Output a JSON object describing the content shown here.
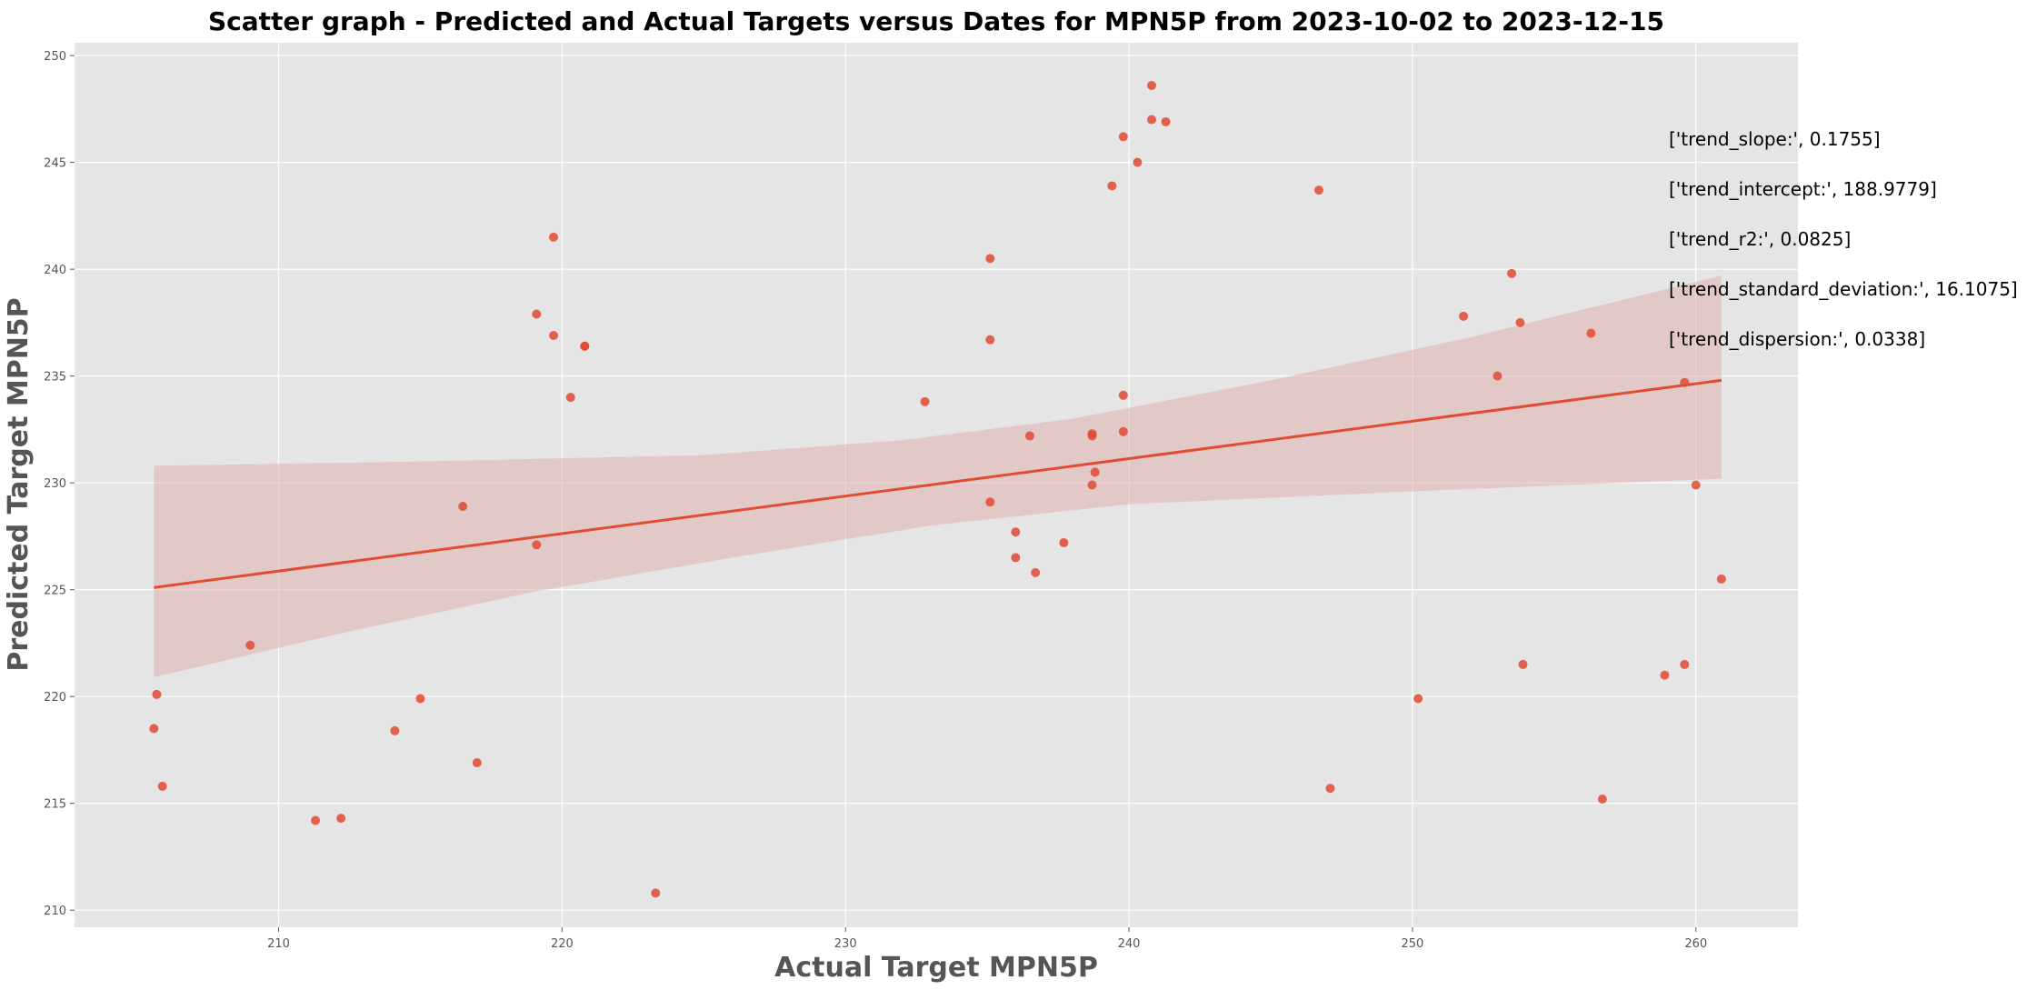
{
  "chart_data": {
    "type": "scatter",
    "title": "Scatter graph - Predicted and Actual Targets versus Dates for MPN5P from 2023-10-02 to 2023-12-15",
    "xlabel": "Actual Target MPN5P",
    "ylabel": "Predicted Target MPN5P",
    "xlim": [
      202.8,
      263.6
    ],
    "ylim": [
      209.2,
      250.6
    ],
    "x_ticks": [
      210,
      220,
      230,
      240,
      250,
      260
    ],
    "y_ticks": [
      210,
      215,
      220,
      225,
      230,
      235,
      240,
      245,
      250
    ],
    "grid": true,
    "colors": {
      "background": "#e5e5e5",
      "grid": "#ffffff",
      "points": "#e24a33",
      "band": "#e2b1b1",
      "line": "#e24a33"
    },
    "points": [
      {
        "x": 205.6,
        "y": 218.5
      },
      {
        "x": 205.7,
        "y": 220.1
      },
      {
        "x": 205.9,
        "y": 215.8
      },
      {
        "x": 209.0,
        "y": 222.4
      },
      {
        "x": 211.3,
        "y": 214.2
      },
      {
        "x": 212.2,
        "y": 214.3
      },
      {
        "x": 214.1,
        "y": 218.4
      },
      {
        "x": 215.0,
        "y": 219.9
      },
      {
        "x": 216.5,
        "y": 228.9
      },
      {
        "x": 217.0,
        "y": 216.9
      },
      {
        "x": 219.1,
        "y": 237.9
      },
      {
        "x": 219.1,
        "y": 227.1
      },
      {
        "x": 219.7,
        "y": 241.5
      },
      {
        "x": 219.7,
        "y": 236.9
      },
      {
        "x": 220.3,
        "y": 234.0
      },
      {
        "x": 220.8,
        "y": 236.4
      },
      {
        "x": 220.8,
        "y": 236.4
      },
      {
        "x": 223.3,
        "y": 210.8
      },
      {
        "x": 232.8,
        "y": 233.8
      },
      {
        "x": 235.1,
        "y": 240.5
      },
      {
        "x": 235.1,
        "y": 236.7
      },
      {
        "x": 235.1,
        "y": 229.1
      },
      {
        "x": 236.0,
        "y": 227.7
      },
      {
        "x": 236.0,
        "y": 226.5
      },
      {
        "x": 236.5,
        "y": 232.2
      },
      {
        "x": 236.7,
        "y": 225.8
      },
      {
        "x": 237.7,
        "y": 227.2
      },
      {
        "x": 238.7,
        "y": 232.2
      },
      {
        "x": 238.7,
        "y": 232.3
      },
      {
        "x": 238.8,
        "y": 230.5
      },
      {
        "x": 238.7,
        "y": 229.9
      },
      {
        "x": 239.4,
        "y": 243.9
      },
      {
        "x": 239.8,
        "y": 246.2
      },
      {
        "x": 239.8,
        "y": 234.1
      },
      {
        "x": 239.8,
        "y": 232.4
      },
      {
        "x": 240.3,
        "y": 245.0
      },
      {
        "x": 240.8,
        "y": 248.6
      },
      {
        "x": 240.8,
        "y": 247.0
      },
      {
        "x": 241.3,
        "y": 246.9
      },
      {
        "x": 246.7,
        "y": 243.7
      },
      {
        "x": 247.1,
        "y": 215.7
      },
      {
        "x": 250.2,
        "y": 219.9
      },
      {
        "x": 251.8,
        "y": 237.8
      },
      {
        "x": 253.0,
        "y": 235.0
      },
      {
        "x": 253.5,
        "y": 239.8
      },
      {
        "x": 253.8,
        "y": 237.5
      },
      {
        "x": 253.9,
        "y": 221.5
      },
      {
        "x": 256.3,
        "y": 237.0
      },
      {
        "x": 256.7,
        "y": 215.2
      },
      {
        "x": 258.9,
        "y": 221.0
      },
      {
        "x": 259.6,
        "y": 234.7
      },
      {
        "x": 259.6,
        "y": 221.5
      },
      {
        "x": 260.0,
        "y": 229.9
      },
      {
        "x": 260.9,
        "y": 225.5
      }
    ],
    "trend_line": [
      {
        "x": 205.6,
        "y": 225.1
      },
      {
        "x": 260.9,
        "y": 234.8
      }
    ],
    "confidence_band": {
      "upper": [
        {
          "x": 205.6,
          "y": 230.8
        },
        {
          "x": 215.0,
          "y": 231.0
        },
        {
          "x": 225.0,
          "y": 231.3
        },
        {
          "x": 232.0,
          "y": 232.0
        },
        {
          "x": 238.0,
          "y": 233.0
        },
        {
          "x": 245.0,
          "y": 234.8
        },
        {
          "x": 252.0,
          "y": 236.8
        },
        {
          "x": 260.9,
          "y": 239.7
        }
      ],
      "lower": [
        {
          "x": 205.6,
          "y": 220.9
        },
        {
          "x": 212.0,
          "y": 222.9
        },
        {
          "x": 219.0,
          "y": 224.9
        },
        {
          "x": 226.0,
          "y": 226.5
        },
        {
          "x": 233.0,
          "y": 228.0
        },
        {
          "x": 240.0,
          "y": 229.0
        },
        {
          "x": 250.0,
          "y": 229.6
        },
        {
          "x": 260.9,
          "y": 230.2
        }
      ]
    },
    "annotations": [
      "['trend_slope:', 0.1755]",
      "['trend_intercept:', 188.9779]",
      "['trend_r2:', 0.0825]",
      "['trend_standard_deviation:', 16.1075]",
      "['trend_dispersion:', 0.0338]"
    ]
  }
}
